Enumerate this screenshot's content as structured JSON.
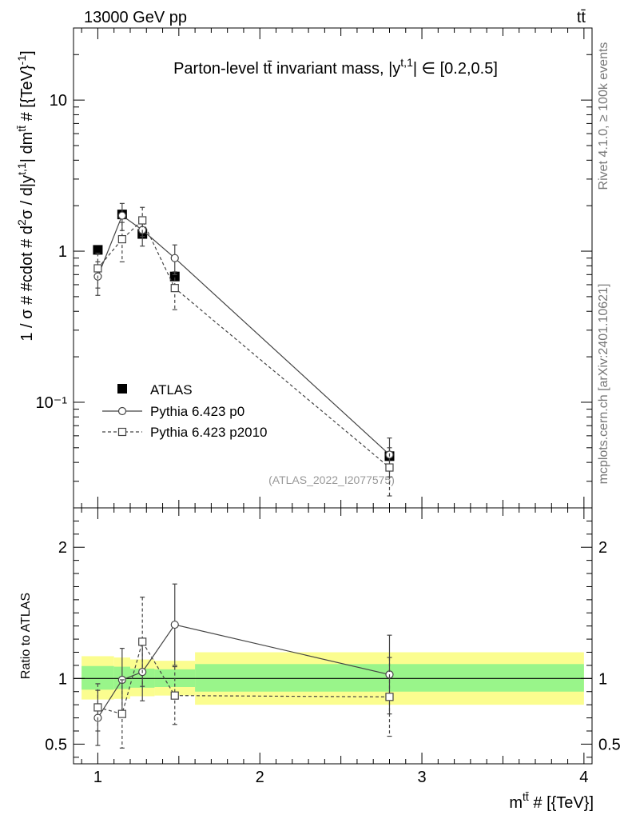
{
  "header": {
    "left": "13000 GeV pp",
    "right": "tt̄"
  },
  "side_labels": {
    "rivet": "Rivet 4.1.0, ≥ 100k events",
    "mcplots": "mcplots.cern.ch [arXiv:2401.10621]"
  },
  "colors": {
    "band_inner": "#99f58a",
    "band_outer": "#fbfd8f",
    "watermark": "#999999",
    "mc_line": "#444444"
  },
  "chart_data": {
    "type": "line",
    "title": "Parton-level tt̄ invariant mass, |y^{t,1}| ∈ [0.2,0.5]",
    "xlabel": "m^{tt̄} # [{TeV}]",
    "ylabel": "1 / σ # #cdot # d²σ / d|y^{t,1}| dm^{tt̄} # [{TeV}⁻¹]",
    "ratio_ylabel": "Ratio to ATLAS",
    "analysis_id": "(ATLAS_2022_I2077575)",
    "xlim": [
      0.85,
      4.05
    ],
    "ylim": [
      0.02,
      30
    ],
    "yscale": "log",
    "ratio_ylim": [
      0.35,
      2.3
    ],
    "x_ticks": [
      1,
      2,
      3,
      4
    ],
    "y_ticks": [
      {
        "value": 0.1,
        "label": "10⁻¹"
      },
      {
        "value": 1,
        "label": "1"
      },
      {
        "value": 10,
        "label": "10"
      }
    ],
    "ratio_ticks": [
      {
        "value": 0.5,
        "label": "0.5"
      },
      {
        "value": 1,
        "label": "1"
      },
      {
        "value": 2,
        "label": "2"
      }
    ],
    "legend": [
      "ATLAS",
      "Pythia 6.423 p0",
      "Pythia 6.423 p2010"
    ],
    "series": [
      {
        "name": "ATLAS",
        "style": "data",
        "x": [
          1.0,
          1.15,
          1.275,
          1.475,
          2.8
        ],
        "y": [
          1.02,
          1.75,
          1.3,
          0.68,
          0.044
        ],
        "yerr": [
          0.0,
          0.0,
          0.0,
          0.0,
          0.0
        ]
      },
      {
        "name": "Pythia 6.423 p0",
        "style": "circle-solid",
        "x": [
          1.0,
          1.15,
          1.275,
          1.475,
          2.8
        ],
        "y": [
          0.68,
          1.72,
          1.38,
          0.9,
          0.045
        ],
        "yerr": [
          0.17,
          0.35,
          0.3,
          0.2,
          0.013
        ]
      },
      {
        "name": "Pythia 6.423 p2010",
        "style": "square-dashed",
        "x": [
          1.0,
          1.15,
          1.275,
          1.475,
          2.8
        ],
        "y": [
          0.77,
          1.2,
          1.6,
          0.57,
          0.037
        ],
        "yerr": [
          0.2,
          0.35,
          0.35,
          0.16,
          0.013
        ]
      }
    ],
    "ratio_series": [
      {
        "name": "Pythia 6.423 p0",
        "style": "circle-solid",
        "x": [
          1.0,
          1.15,
          1.275,
          1.475,
          2.8
        ],
        "y": [
          0.7,
          0.99,
          1.05,
          1.41,
          1.03
        ],
        "yerr": [
          0.21,
          0.24,
          0.22,
          0.31,
          0.3
        ]
      },
      {
        "name": "Pythia 6.423 p2010",
        "style": "square-dashed",
        "x": [
          1.0,
          1.15,
          1.275,
          1.475,
          2.8
        ],
        "y": [
          0.78,
          0.73,
          1.28,
          0.87,
          0.86
        ],
        "yerr": [
          0.18,
          0.26,
          0.34,
          0.22,
          0.3
        ]
      }
    ],
    "bands": [
      {
        "x0": 0.9,
        "x1": 1.1,
        "inner": [
          0.915,
          1.095
        ],
        "outer": [
          0.84,
          1.17
        ]
      },
      {
        "x0": 1.1,
        "x1": 1.2,
        "inner": [
          0.92,
          1.09
        ],
        "outer": [
          0.845,
          1.16
        ]
      },
      {
        "x0": 1.2,
        "x1": 1.35,
        "inner": [
          0.93,
          1.075
        ],
        "outer": [
          0.865,
          1.145
        ]
      },
      {
        "x0": 1.35,
        "x1": 1.6,
        "inner": [
          0.935,
          1.07
        ],
        "outer": [
          0.87,
          1.135
        ]
      },
      {
        "x0": 1.6,
        "x1": 4.0,
        "inner": [
          0.9,
          1.11
        ],
        "outer": [
          0.8,
          1.2
        ]
      }
    ]
  }
}
